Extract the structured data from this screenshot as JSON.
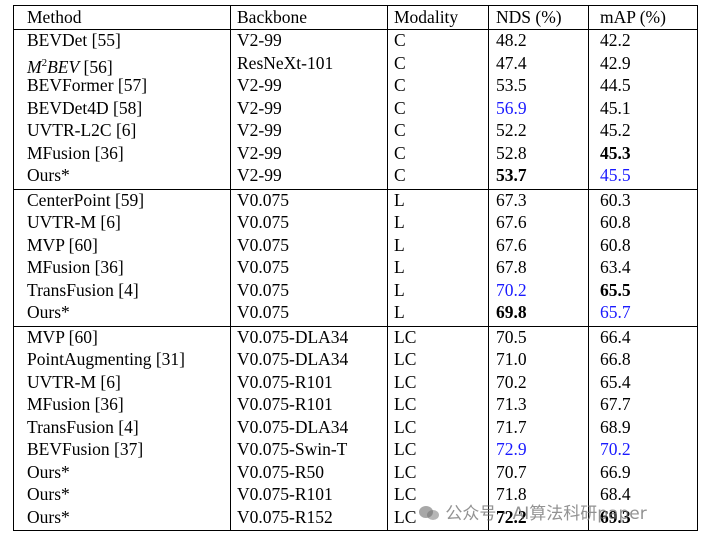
{
  "table": {
    "header": [
      "Method",
      "Backbone",
      "Modality",
      "NDS (%)",
      "mAP (%)"
    ],
    "groups": [
      {
        "rows": [
          [
            "BEVDet [55]",
            "V2-99",
            "C",
            "48.2",
            "42.2"
          ],
          [
            {
              "parts": [
                {
                  "text": "M",
                  "style": "italic"
                },
                {
                  "text": "2",
                  "style": "sup"
                },
                {
                  "text": "BEV",
                  "style": "italic"
                },
                {
                  "text": " [56]"
                }
              ]
            },
            "ResNeXt-101",
            "C",
            "47.4",
            "42.9"
          ],
          [
            "BEVFormer [57]",
            "V2-99",
            "C",
            "53.5",
            "44.5"
          ],
          [
            "BEVDet4D [58]",
            "V2-99",
            "C",
            {
              "text": "56.9",
              "style": "blue"
            },
            "45.1"
          ],
          [
            "UVTR-L2C [6]",
            "V2-99",
            "C",
            "52.2",
            "45.2"
          ],
          [
            "MFusion [36]",
            "V2-99",
            "C",
            "52.8",
            {
              "text": "45.3",
              "style": "bold"
            }
          ],
          [
            "Ours*",
            "V2-99",
            "C",
            {
              "text": "53.7",
              "style": "bold"
            },
            {
              "text": "45.5",
              "style": "blue"
            }
          ]
        ]
      },
      {
        "rows": [
          [
            "CenterPoint [59]",
            "V0.075",
            "L",
            "67.3",
            "60.3"
          ],
          [
            "UVTR-M [6]",
            "V0.075",
            "L",
            "67.6",
            "60.8"
          ],
          [
            "MVP [60]",
            "V0.075",
            "L",
            "67.6",
            "60.8"
          ],
          [
            "MFusion [36]",
            "V0.075",
            "L",
            "67.8",
            "63.4"
          ],
          [
            "TransFusion [4]",
            "V0.075",
            "L",
            {
              "text": "70.2",
              "style": "blue"
            },
            {
              "text": "65.5",
              "style": "bold"
            }
          ],
          [
            "Ours*",
            "V0.075",
            "L",
            {
              "text": "69.8",
              "style": "bold"
            },
            {
              "text": "65.7",
              "style": "blue"
            }
          ]
        ]
      },
      {
        "rows": [
          [
            "MVP [60]",
            "V0.075-DLA34",
            "LC",
            "70.5",
            "66.4"
          ],
          [
            "PointAugmenting [31]",
            "V0.075-DLA34",
            "LC",
            "71.0",
            "66.8"
          ],
          [
            "UVTR-M [6]",
            "V0.075-R101",
            "LC",
            "70.2",
            "65.4"
          ],
          [
            "MFusion [36]",
            "V0.075-R101",
            "LC",
            "71.3",
            "67.7"
          ],
          [
            "TransFusion [4]",
            "V0.075-DLA34",
            "LC",
            "71.7",
            "68.9"
          ],
          [
            "BEVFusion [37]",
            "V0.075-Swin-T",
            "LC",
            {
              "text": "72.9",
              "style": "blue"
            },
            {
              "text": "70.2",
              "style": "blue"
            }
          ],
          [
            "Ours*",
            "V0.075-R50",
            "LC",
            "70.7",
            "66.9"
          ],
          [
            "Ours*",
            "V0.075-R101",
            "LC",
            "71.8",
            "68.4"
          ],
          [
            "Ours*",
            "V0.075-R152",
            "LC",
            {
              "text": "72.2",
              "style": "bold"
            },
            {
              "text": "69.3",
              "style": "bold"
            }
          ]
        ]
      }
    ]
  },
  "watermark": "公众号 · AI算法科研paper"
}
